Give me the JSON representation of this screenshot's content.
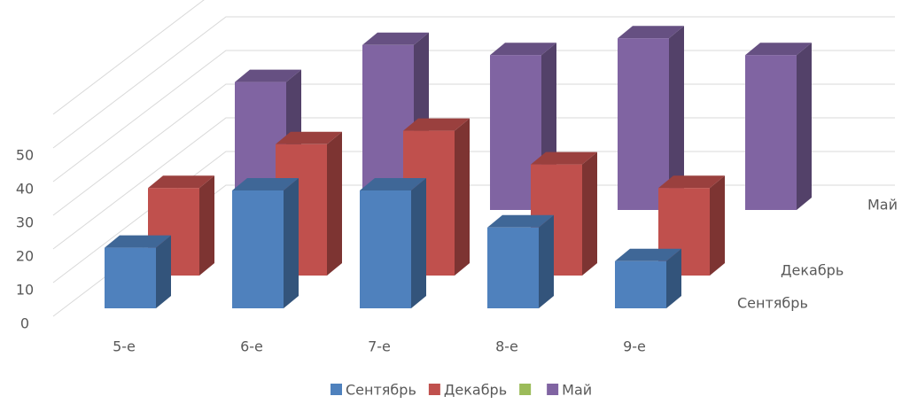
{
  "chart_data": {
    "type": "bar3d",
    "categories": [
      "5-е",
      "6-е",
      "7-е",
      "8-е",
      "9-е"
    ],
    "series": [
      {
        "name": "Сентябрь",
        "color": "#4f81bd",
        "values": [
          18,
          35,
          35,
          24,
          14
        ]
      },
      {
        "name": "Декабрь",
        "color": "#c0504d",
        "values": [
          26,
          39,
          43,
          33,
          26
        ]
      },
      {
        "name": null,
        "color": "#9bbb59",
        "values": [
          null,
          null,
          null,
          null,
          null
        ]
      },
      {
        "name": "Май",
        "color": "#8064a2",
        "values": [
          38,
          49,
          46,
          51,
          46
        ]
      }
    ],
    "ylim": [
      0,
      60
    ],
    "yticks": [
      0,
      10,
      20,
      30,
      40,
      50
    ],
    "grid": true,
    "legend": "bottom"
  }
}
